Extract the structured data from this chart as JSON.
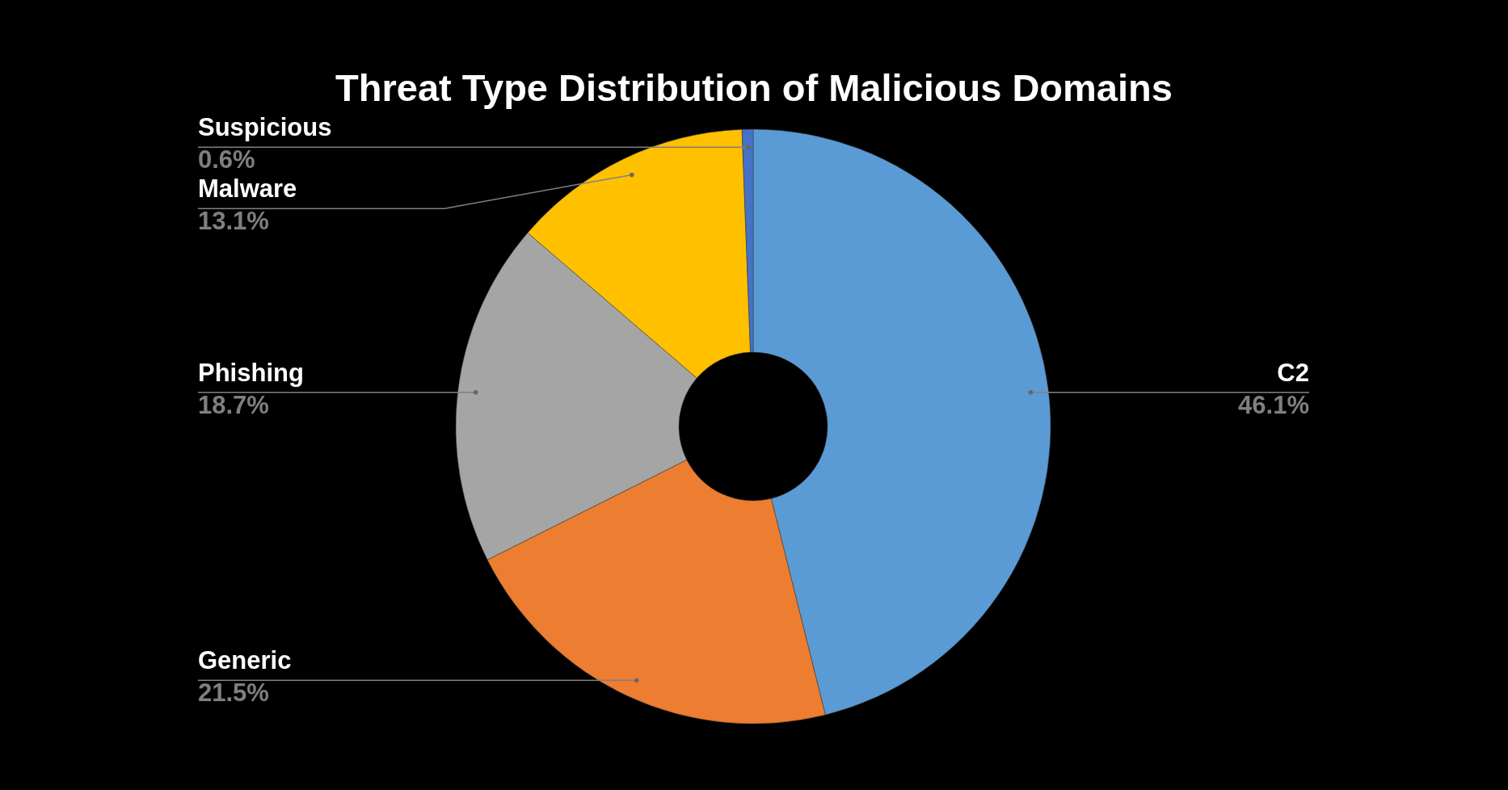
{
  "chart_data": {
    "type": "donut",
    "title": "Threat Type Distribution of Malicious Domains",
    "categories": [
      "C2",
      "Generic",
      "Phishing",
      "Malware",
      "Suspicious"
    ],
    "values": [
      46.1,
      21.5,
      18.7,
      13.1,
      0.6
    ],
    "colors": [
      "#5b9bd5",
      "#ed7d31",
      "#a5a5a5",
      "#ffc000",
      "#4472c4"
    ],
    "value_labels": [
      "46.1%",
      "21.5%",
      "18.7%",
      "13.1%",
      "0.6%"
    ],
    "legend": false
  }
}
